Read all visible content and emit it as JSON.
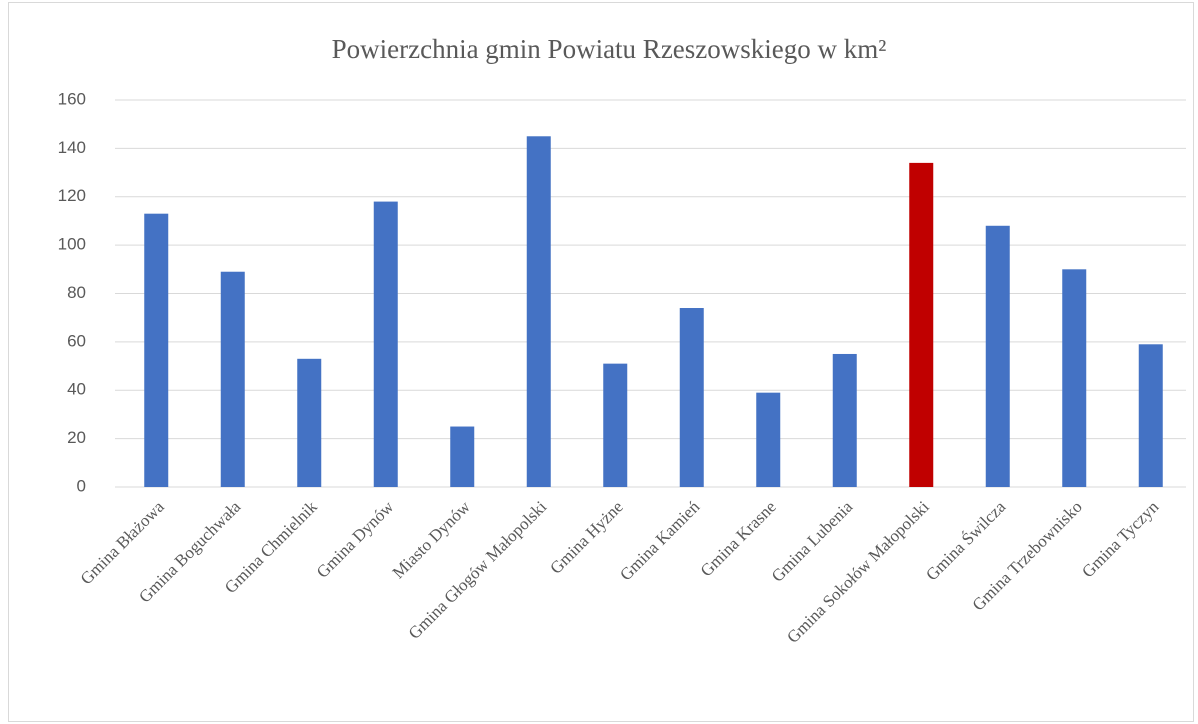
{
  "chart_data": {
    "type": "bar",
    "title": "Powierzchnia gmin Powiatu Rzeszowskiego w km²",
    "categories": [
      "Gmina Błażowa",
      "Gmina Boguchwała",
      "Gmina Chmielnik",
      "Gmina Dynów",
      "Miasto Dynów",
      "Gmina Głogów Małopolski",
      "Gmina Hyżne",
      "Gmina Kamień",
      "Gmina Krasne",
      "Gmina Lubenia",
      "Gmina Sokołów Małopolski",
      "Gmina Świlcza",
      "Gmina Trzebownisko",
      "Gmina Tyczyn"
    ],
    "values": [
      113,
      89,
      53,
      118,
      25,
      145,
      51,
      74,
      39,
      55,
      134,
      108,
      90,
      59
    ],
    "colors": [
      "#4472c4",
      "#4472c4",
      "#4472c4",
      "#4472c4",
      "#4472c4",
      "#4472c4",
      "#4472c4",
      "#4472c4",
      "#4472c4",
      "#4472c4",
      "#c00000",
      "#4472c4",
      "#4472c4",
      "#4472c4"
    ],
    "ylim": [
      0,
      160
    ],
    "yticks": [
      0,
      20,
      40,
      60,
      80,
      100,
      120,
      140,
      160
    ],
    "grid": true
  }
}
